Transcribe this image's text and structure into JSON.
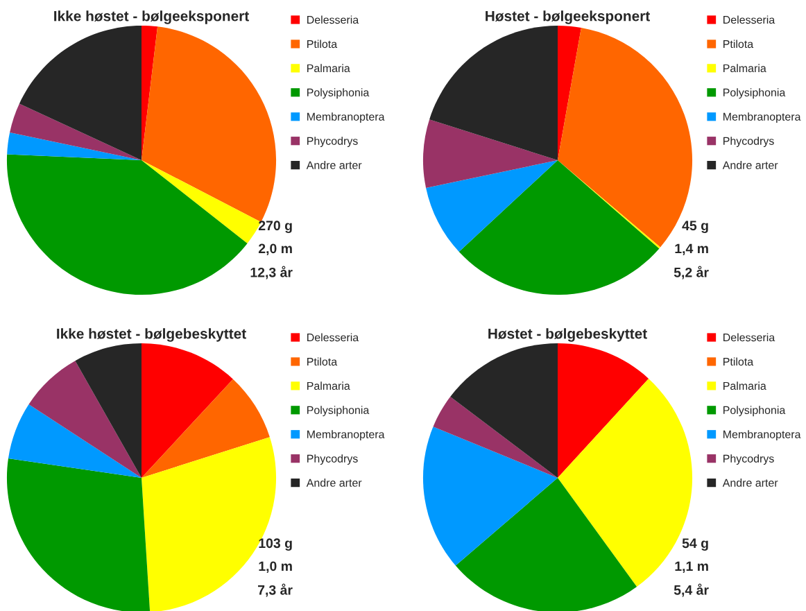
{
  "chart_data": [
    {
      "type": "pie",
      "title": "Ikke høstet - bølgeeksponert",
      "categories": [
        "Delesseria",
        "Ptilota",
        "Palmaria",
        "Polysiphonia",
        "Membranoptera",
        "Phycodrys",
        "Andre arter"
      ],
      "values": [
        1.9,
        30.7,
        3.0,
        40.1,
        2.6,
        3.6,
        18.1
      ],
      "colors": [
        "#ff0000",
        "#ff6600",
        "#ffff00",
        "#009900",
        "#0099ff",
        "#993366",
        "#262626"
      ],
      "legend": "right",
      "annotations": [
        "270 g",
        "2,0 m",
        "12,3 år"
      ]
    },
    {
      "type": "pie",
      "title": "Høstet - bølgeeksponert",
      "categories": [
        "Delesseria",
        "Ptilota",
        "Palmaria",
        "Polysiphonia",
        "Membranoptera",
        "Phycodrys",
        "Andre arter"
      ],
      "values": [
        2.8,
        33.4,
        0.2,
        26.7,
        8.6,
        8.2,
        20.1
      ],
      "colors": [
        "#ff0000",
        "#ff6600",
        "#ffff00",
        "#009900",
        "#0099ff",
        "#993366",
        "#262626"
      ],
      "legend": "right",
      "annotations": [
        "45 g",
        "1,4 m",
        "5,2 år"
      ]
    },
    {
      "type": "pie",
      "title": "Ikke høstet - bølgebeskyttet",
      "categories": [
        "Delesseria",
        "Ptilota",
        "Palmaria",
        "Polysiphonia",
        "Membranoptera",
        "Phycodrys",
        "Andre arter"
      ],
      "values": [
        11.9,
        8.2,
        28.9,
        28.3,
        6.9,
        7.6,
        8.2
      ],
      "colors": [
        "#ff0000",
        "#ff6600",
        "#ffff00",
        "#009900",
        "#0099ff",
        "#993366",
        "#262626"
      ],
      "legend": "right",
      "annotations": [
        "103 g",
        "1,0 m",
        "7,3 år"
      ]
    },
    {
      "type": "pie",
      "title": "Høstet - bølgebeskyttet",
      "categories": [
        "Delesseria",
        "Ptilota",
        "Palmaria",
        "Polysiphonia",
        "Membranoptera",
        "Phycodrys",
        "Andre arter"
      ],
      "values": [
        11.8,
        0,
        28.2,
        23.7,
        17.5,
        4.1,
        14.7
      ],
      "colors": [
        "#ff0000",
        "#ff6600",
        "#ffff00",
        "#009900",
        "#0099ff",
        "#993366",
        "#262626"
      ],
      "legend": "right",
      "annotations": [
        "54 g",
        "1,1 m",
        "5,4 år"
      ]
    }
  ]
}
